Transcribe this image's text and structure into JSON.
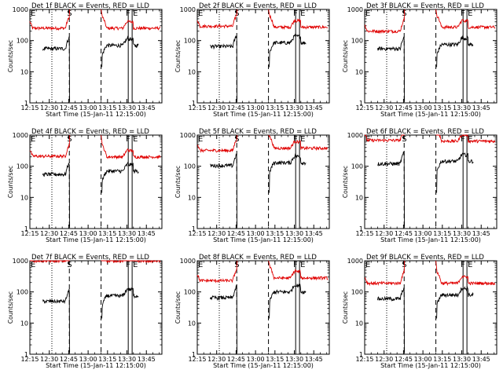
{
  "chart_data": {
    "type": "line",
    "x_tick_labels": [
      "12:15",
      "12:30",
      "12:45",
      "13:00",
      "13:15",
      "13:30",
      "13:45"
    ],
    "x_ticks_min": [
      0,
      15,
      30,
      45,
      60,
      75,
      90
    ],
    "xlim_min": [
      0,
      102
    ],
    "ylim": [
      1,
      1000
    ],
    "y_scale": "log",
    "y_tick_labels": [
      "1",
      "10",
      "100",
      "1000"
    ],
    "xlabel": "Start Time (15-Jan-11 12:15:00)",
    "ylabel": "Counts/sec",
    "legend_text": "BLACK = Events, RED = LLD",
    "marker_labels": {
      "start_E": "E",
      "S": "S",
      "F": "F",
      "end_E": "E"
    },
    "markers_min": {
      "E1": 0,
      "dotted": 17,
      "S": 30.5,
      "dashed2": 55,
      "F": 76,
      "E2": 79
    },
    "colors": {
      "events": "#000000",
      "lld": "#e00000",
      "axis": "#000000"
    },
    "panels": [
      {
        "title": "Det 1f",
        "lld_seg1": 250,
        "lld_seg2": 250,
        "ev_seg1": 55,
        "ev_seg2": 70
      },
      {
        "title": "Det 2f",
        "lld_seg1": 290,
        "lld_seg2": 270,
        "ev_seg1": 65,
        "ev_seg2": 85
      },
      {
        "title": "Det 3f",
        "lld_seg1": 200,
        "lld_seg2": 270,
        "ev_seg1": 55,
        "ev_seg2": 75
      },
      {
        "title": "Det 4f",
        "lld_seg1": 210,
        "lld_seg2": 200,
        "ev_seg1": 55,
        "ev_seg2": 70
      },
      {
        "title": "Det 5f",
        "lld_seg1": 320,
        "lld_seg2": 380,
        "ev_seg1": 105,
        "ev_seg2": 130
      },
      {
        "title": "Det 6f",
        "lld_seg1": 680,
        "lld_seg2": 640,
        "ev_seg1": 120,
        "ev_seg2": 145
      },
      {
        "title": "Det 7f",
        "lld_seg1": 1000,
        "lld_seg2": 1000,
        "ev_seg1": 50,
        "ev_seg2": 75
      },
      {
        "title": "Det 8f",
        "lld_seg1": 230,
        "lld_seg2": 280,
        "ev_seg1": 65,
        "ev_seg2": 100
      },
      {
        "title": "Det 9f",
        "lld_seg1": 190,
        "lld_seg2": 190,
        "ev_seg1": 60,
        "ev_seg2": 80
      }
    ]
  }
}
